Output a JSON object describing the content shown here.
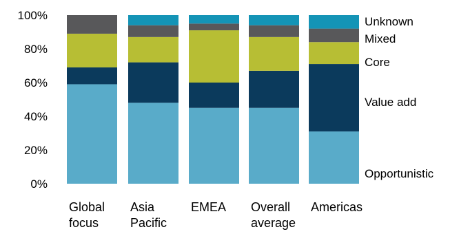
{
  "chart_data": {
    "type": "bar",
    "stacked": true,
    "categories": [
      [
        "Global",
        "focus"
      ],
      [
        "Asia",
        "Pacific"
      ],
      [
        "EMEA"
      ],
      [
        "Overall",
        "average"
      ],
      [
        "Americas"
      ]
    ],
    "series": [
      {
        "name": "Opportunistic",
        "color": "#59abc9",
        "values": [
          59,
          48,
          45,
          45,
          31
        ]
      },
      {
        "name": "Value add",
        "color": "#0b3a5c",
        "values": [
          10,
          24,
          15,
          22,
          40
        ]
      },
      {
        "name": "Core",
        "color": "#b7be34",
        "values": [
          20,
          15,
          31,
          20,
          13
        ]
      },
      {
        "name": "Mixed",
        "color": "#58585a",
        "values": [
          11,
          7,
          4,
          7,
          8
        ]
      },
      {
        "name": "Unknown",
        "color": "#1494b6",
        "values": [
          0,
          6,
          5,
          6,
          8
        ]
      }
    ],
    "yticks": [
      "0%",
      "20%",
      "40%",
      "60%",
      "80%",
      "100%"
    ],
    "ylim": [
      0,
      100
    ],
    "legend_placement": "right",
    "grid": false,
    "title": "",
    "xlabel": "",
    "ylabel": ""
  }
}
